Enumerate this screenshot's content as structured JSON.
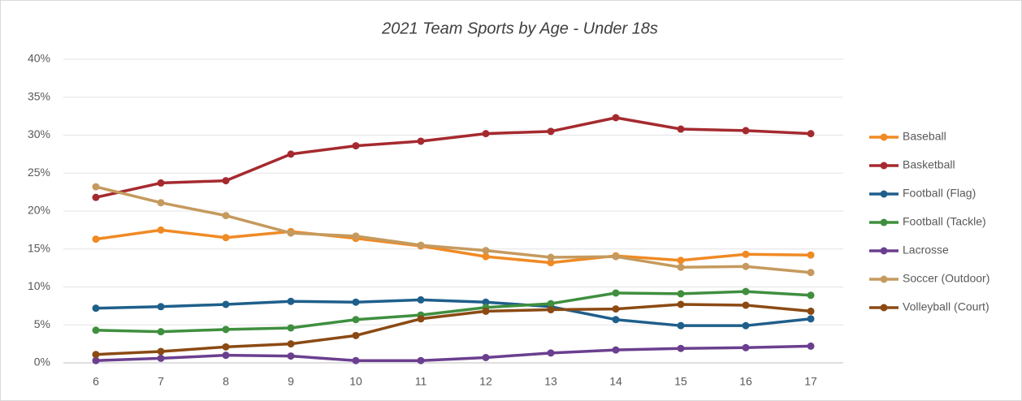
{
  "chart_data": {
    "type": "line",
    "title": "2021 Team Sports by Age - Under 18s",
    "x": [
      6,
      7,
      8,
      9,
      10,
      11,
      12,
      13,
      14,
      15,
      16,
      17
    ],
    "xlim": [
      5.5,
      17.5
    ],
    "xticks": [
      6,
      7,
      8,
      9,
      10,
      11,
      12,
      13,
      14,
      15,
      16,
      17
    ],
    "ylim": [
      0,
      40
    ],
    "yticks": [
      {
        "value": 0,
        "label": "0%"
      },
      {
        "value": 5,
        "label": "5%"
      },
      {
        "value": 10,
        "label": "10%"
      },
      {
        "value": 15,
        "label": "15%"
      },
      {
        "value": 20,
        "label": "20%"
      },
      {
        "value": 25,
        "label": "25%"
      },
      {
        "value": 30,
        "label": "30%"
      },
      {
        "value": 35,
        "label": "35%"
      },
      {
        "value": 40,
        "label": "40%"
      }
    ],
    "grid": true,
    "legend": "right",
    "series": [
      {
        "name": "Baseball",
        "color": "#f08a24",
        "values": [
          16.3,
          17.5,
          16.5,
          17.3,
          16.4,
          15.4,
          14.0,
          13.2,
          14.1,
          13.5,
          14.3,
          14.2
        ]
      },
      {
        "name": "Basketball",
        "color": "#a52a2f",
        "values": [
          21.8,
          23.7,
          24.0,
          27.5,
          28.6,
          29.2,
          30.2,
          30.5,
          32.3,
          30.8,
          30.6,
          30.2
        ]
      },
      {
        "name": "Football (Flag)",
        "color": "#1f5f8b",
        "values": [
          7.2,
          7.4,
          7.7,
          8.1,
          8.0,
          8.3,
          8.0,
          7.4,
          5.7,
          4.9,
          4.9,
          5.8
        ]
      },
      {
        "name": "Football (Tackle)",
        "color": "#3f8f3f",
        "values": [
          4.3,
          4.1,
          4.4,
          4.6,
          5.7,
          6.3,
          7.3,
          7.8,
          9.2,
          9.1,
          9.4,
          8.9
        ]
      },
      {
        "name": "Lacrosse",
        "color": "#6b3f8f",
        "values": [
          0.3,
          0.6,
          1.0,
          0.9,
          0.3,
          0.3,
          0.7,
          1.3,
          1.7,
          1.9,
          2.0,
          2.2
        ]
      },
      {
        "name": "Soccer (Outdoor)",
        "color": "#c59a5e",
        "values": [
          23.2,
          21.1,
          19.4,
          17.1,
          16.7,
          15.5,
          14.8,
          13.9,
          14.0,
          12.6,
          12.7,
          11.9
        ]
      },
      {
        "name": "Volleyball (Court)",
        "color": "#8b4a13",
        "values": [
          1.1,
          1.5,
          2.1,
          2.5,
          3.6,
          5.8,
          6.8,
          7.0,
          7.1,
          7.7,
          7.6,
          6.8
        ]
      }
    ]
  }
}
